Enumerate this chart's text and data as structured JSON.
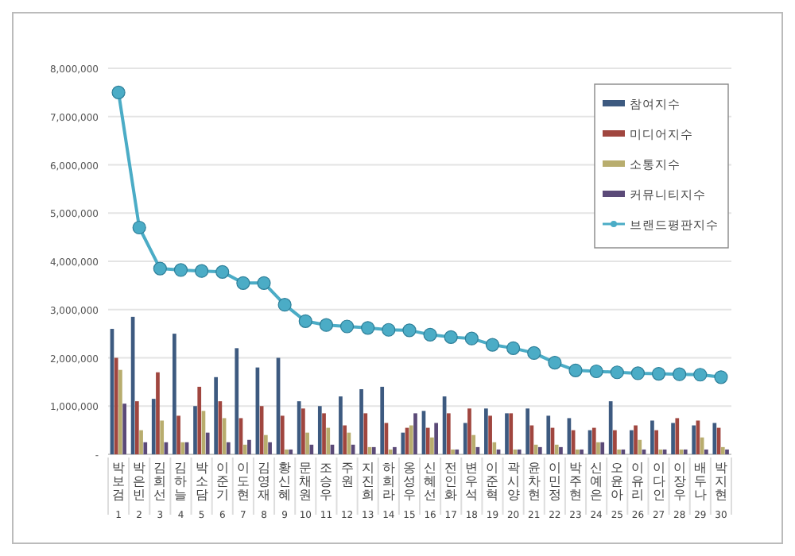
{
  "chart_data": {
    "type": "bar",
    "categories": [
      "박보검\n1",
      "박은빈\n2",
      "김희선\n3",
      "김하늘\n4",
      "박소담\n5",
      "이준기\n6",
      "이도현\n7",
      "김영재\n8",
      "황신혜\n9",
      "문채원\n10",
      "조승우\n11",
      "주원\n12",
      "지진희\n13",
      "하희라\n14",
      "옹성우\n15",
      "신혜선\n16",
      "전인화\n17",
      "변우석\n18",
      "이준혁\n19",
      "곽시양\n20",
      "윤차현\n21",
      "이민정\n22",
      "박주현\n23",
      "신예은\n24",
      "오윤아\n25",
      "이유리\n26",
      "이다인\n27",
      "이장우\n28",
      "배두나\n29",
      "박지현\n30"
    ],
    "series": [
      {
        "name": "참여지수",
        "color": "#3d5a80",
        "values": [
          2600000,
          2850000,
          1150000,
          2500000,
          1000000,
          1600000,
          2200000,
          1800000,
          2000000,
          1100000,
          1000000,
          1200000,
          1350000,
          1400000,
          450000,
          900000,
          1200000,
          650000,
          950000,
          850000,
          950000,
          800000,
          750000,
          500000,
          1100000,
          500000,
          700000,
          650000,
          600000,
          650000
        ]
      },
      {
        "name": "미디어지수",
        "color": "#a0463f",
        "values": [
          2000000,
          1100000,
          1700000,
          800000,
          1400000,
          1100000,
          750000,
          1000000,
          800000,
          950000,
          850000,
          600000,
          850000,
          650000,
          550000,
          550000,
          850000,
          950000,
          800000,
          850000,
          600000,
          550000,
          500000,
          550000,
          500000,
          600000,
          500000,
          750000,
          700000,
          550000
        ]
      },
      {
        "name": "소통지수",
        "color": "#b8ad6e",
        "values": [
          1750000,
          500000,
          700000,
          250000,
          900000,
          750000,
          200000,
          400000,
          100000,
          450000,
          550000,
          450000,
          150000,
          100000,
          600000,
          350000,
          100000,
          400000,
          250000,
          100000,
          200000,
          200000,
          100000,
          250000,
          100000,
          300000,
          100000,
          100000,
          350000,
          150000
        ]
      },
      {
        "name": "커뮤니티지수",
        "color": "#5b4a78",
        "values": [
          1050000,
          250000,
          250000,
          250000,
          450000,
          250000,
          300000,
          250000,
          100000,
          200000,
          200000,
          200000,
          150000,
          150000,
          850000,
          650000,
          100000,
          150000,
          100000,
          100000,
          150000,
          150000,
          100000,
          250000,
          100000,
          100000,
          100000,
          100000,
          100000,
          100000
        ]
      },
      {
        "name": "브랜드평판지수",
        "type": "line",
        "color": "#4bacc6",
        "values": [
          7500000,
          4700000,
          3850000,
          3820000,
          3800000,
          3780000,
          3550000,
          3550000,
          3100000,
          2760000,
          2680000,
          2650000,
          2620000,
          2580000,
          2570000,
          2480000,
          2430000,
          2400000,
          2270000,
          2200000,
          2100000,
          1900000,
          1740000,
          1720000,
          1700000,
          1680000,
          1670000,
          1660000,
          1650000,
          1600000
        ]
      }
    ],
    "ylim": [
      0,
      8000000
    ],
    "yticks": [
      {
        "value": 0,
        "label": "-"
      },
      {
        "value": 1000000,
        "label": "1,000,000"
      },
      {
        "value": 2000000,
        "label": "2,000,000"
      },
      {
        "value": 3000000,
        "label": "3,000,000"
      },
      {
        "value": 4000000,
        "label": "4,000,000"
      },
      {
        "value": 5000000,
        "label": "5,000,000"
      },
      {
        "value": 6000000,
        "label": "6,000,000"
      },
      {
        "value": 7000000,
        "label": "7,000,000"
      },
      {
        "value": 8000000,
        "label": "8,000,000"
      }
    ],
    "grid": "y",
    "legend": "top right",
    "marker": "circle"
  }
}
